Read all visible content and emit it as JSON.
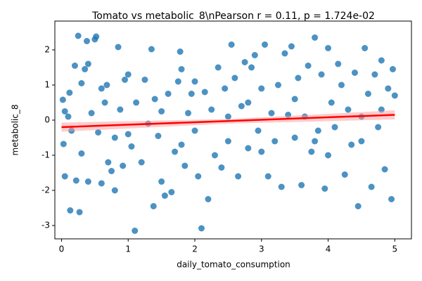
{
  "chart_data": {
    "type": "scatter",
    "title": "Tomato vs metabolic_8\\nPearson r = 0.11, p = 1.724e-02",
    "x_label": "daily_tomato_consumption",
    "y_label": "metabolic_8",
    "xlim": [
      -0.1,
      5.25
    ],
    "ylim": [
      -3.38,
      2.82
    ],
    "xticks": [
      0,
      1,
      2,
      3,
      4,
      5
    ],
    "yticks": [
      -3,
      -2,
      -1,
      0,
      1,
      2
    ],
    "color": "#1f77b4",
    "x": [
      0.02,
      0.03,
      0.05,
      0.05,
      0.1,
      0.12,
      0.13,
      0.15,
      0.2,
      0.22,
      0.25,
      0.27,
      0.3,
      0.35,
      0.38,
      0.4,
      0.4,
      0.45,
      0.5,
      0.52,
      0.55,
      0.6,
      0.65,
      0.68,
      0.7,
      0.75,
      0.8,
      0.85,
      0.88,
      0.92,
      0.95,
      1.0,
      1.05,
      1.1,
      1.12,
      1.2,
      1.25,
      1.3,
      1.35,
      1.38,
      1.4,
      1.45,
      1.5,
      1.55,
      1.6,
      1.65,
      1.7,
      1.75,
      1.78,
      1.8,
      1.85,
      1.9,
      1.95,
      2.0,
      2.05,
      2.1,
      2.15,
      2.2,
      2.25,
      2.3,
      2.35,
      2.4,
      2.45,
      2.5,
      2.55,
      2.6,
      2.65,
      2.7,
      2.75,
      2.8,
      2.85,
      2.9,
      2.95,
      3.0,
      3.05,
      3.1,
      3.15,
      3.2,
      3.25,
      3.3,
      3.35,
      3.4,
      3.45,
      3.5,
      3.55,
      3.6,
      3.65,
      3.7,
      3.75,
      3.8,
      3.85,
      3.9,
      3.95,
      4.0,
      4.05,
      4.1,
      4.15,
      4.2,
      4.25,
      4.3,
      4.35,
      4.4,
      4.45,
      4.5,
      4.55,
      4.6,
      4.65,
      4.7,
      4.75,
      4.8,
      4.85,
      4.9,
      4.95,
      4.97,
      5.0,
      0.3,
      0.6,
      1.0,
      1.5,
      2.0,
      2.5,
      3.0,
      3.5,
      4.0,
      4.5,
      0.8,
      1.8,
      2.8,
      3.8,
      4.8
    ],
    "y": [
      0.58,
      -0.68,
      0.25,
      -1.6,
      0.1,
      0.78,
      -2.57,
      -0.3,
      1.55,
      -1.72,
      2.4,
      -2.62,
      1.05,
      1.45,
      2.25,
      1.6,
      -1.75,
      0.2,
      2.3,
      2.38,
      -0.35,
      -1.8,
      0.5,
      1.0,
      -1.2,
      -1.45,
      -2.0,
      2.08,
      0.3,
      -1.3,
      1.15,
      1.3,
      -0.75,
      -3.15,
      0.5,
      -1.2,
      1.15,
      -0.1,
      2.02,
      -2.45,
      0.6,
      -0.45,
      -1.75,
      -2.15,
      0.75,
      -2.05,
      -0.9,
      1.1,
      1.95,
      1.45,
      -1.3,
      0.2,
      0.75,
      -0.3,
      -1.6,
      -3.08,
      0.8,
      -2.25,
      0.3,
      -1.0,
      1.5,
      -1.35,
      0.9,
      -0.6,
      2.15,
      1.2,
      -1.6,
      0.4,
      1.65,
      -0.8,
      1.5,
      1.85,
      -0.3,
      0.9,
      2.15,
      -1.6,
      0.2,
      -0.6,
      1.0,
      -1.9,
      1.9,
      0.15,
      2.1,
      -0.5,
      1.2,
      -1.85,
      0.1,
      1.55,
      -0.9,
      2.35,
      -0.3,
      1.3,
      -1.95,
      2.05,
      0.5,
      -0.2,
      1.6,
      1.0,
      -1.55,
      0.3,
      -0.7,
      1.35,
      -2.45,
      -0.6,
      2.05,
      0.75,
      -1.9,
      1.3,
      -0.2,
      1.7,
      -1.4,
      0.9,
      -2.25,
      1.45,
      0.7,
      -0.95,
      0.9,
      -0.4,
      0.25,
      1.1,
      0.1,
      -0.9,
      0.6,
      -1.0,
      0.1,
      -0.5,
      -0.7,
      0.5,
      -0.6,
      0.3
    ],
    "regression": {
      "color": "#ff0000",
      "x": [
        0,
        5
      ],
      "y": [
        -0.2,
        0.15
      ]
    },
    "ci_band": {
      "color": "#ff9999",
      "x": [
        0,
        2.5,
        5
      ],
      "lower": [
        -0.33,
        -0.1,
        0.02
      ],
      "upper": [
        -0.07,
        0.03,
        0.28
      ]
    }
  }
}
